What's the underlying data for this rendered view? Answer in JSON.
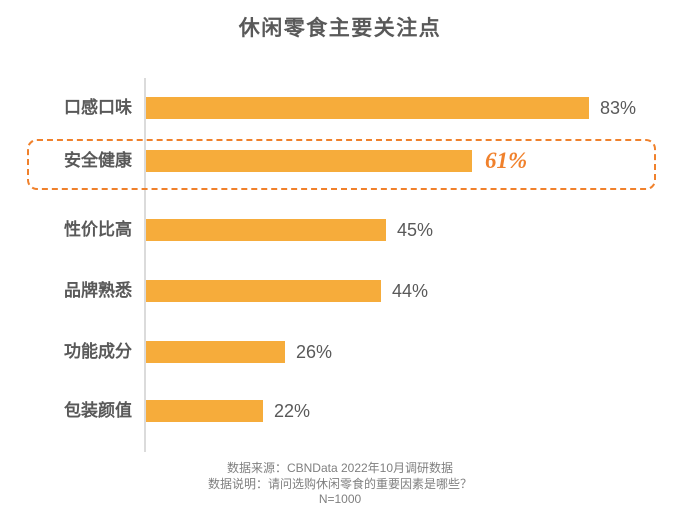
{
  "title": "休闲零食主要关注点",
  "chart_data": {
    "type": "bar",
    "orientation": "horizontal",
    "title": "休闲零食主要关注点",
    "categories": [
      "口感口味",
      "安全健康",
      "性价比高",
      "品牌熟悉",
      "功能成分",
      "包装颜值"
    ],
    "values": [
      83,
      61,
      45,
      44,
      26,
      22
    ],
    "value_labels": [
      "83%",
      "61%",
      "45%",
      "44%",
      "26%",
      "22%"
    ],
    "highlighted_index": 1,
    "highlighted_category": "安全健康",
    "xlim": [
      0,
      100
    ],
    "grid": false,
    "legend": false,
    "bar_color": "#F6AC3B",
    "highlight_color": "#F0812C",
    "label_color": "#595959",
    "axis_color": "#DBDBDB"
  },
  "footer": {
    "source": "数据来源：CBNData 2022年10月调研数据",
    "note": "数据说明：请问选购休闲零食的重要因素是哪些？",
    "sample": "N=1000"
  }
}
